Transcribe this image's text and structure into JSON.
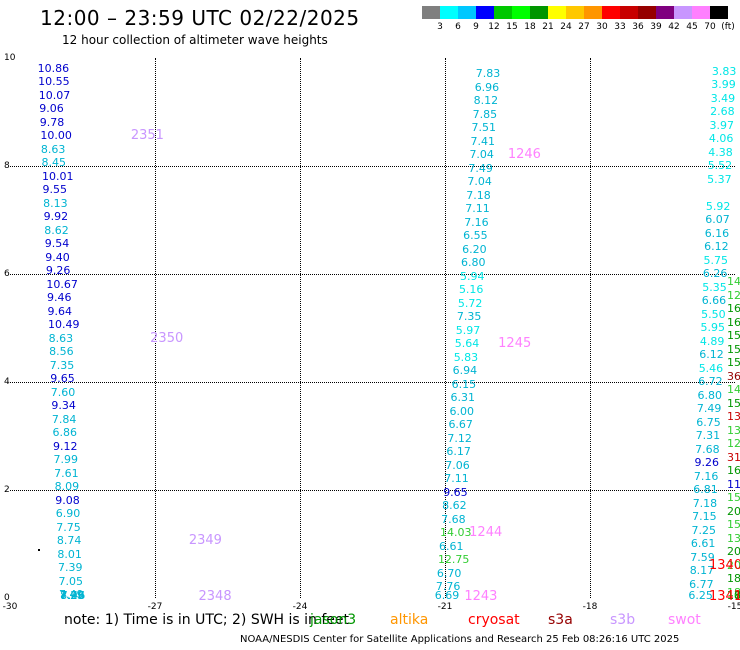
{
  "title": "12:00 – 23:59 UTC 02/22/2025",
  "subtitle": "12 hour collection of altimeter wave heights",
  "colorbar": {
    "colors": [
      "#7f7f7f",
      "#00ffff",
      "#00c8ff",
      "#0000ff",
      "#00c800",
      "#00ff00",
      "#009600",
      "#ffff00",
      "#ffc800",
      "#ff9600",
      "#ff0000",
      "#c80000",
      "#960000",
      "#7f007f",
      "#c896ff",
      "#ff80ff",
      "#000000"
    ],
    "labels": [
      "3",
      "6",
      "9",
      "12",
      "15",
      "18",
      "21",
      "24",
      "27",
      "30",
      "33",
      "36",
      "39",
      "42",
      "45",
      "70",
      "(ft)"
    ]
  },
  "axes": {
    "y_ticks": [
      "10",
      "8",
      "6",
      "4",
      "2",
      "0"
    ],
    "x_ticks": [
      "-30",
      "-27",
      "-24",
      "-21",
      "-18",
      "-15"
    ]
  },
  "chart_data": {
    "type": "scatter",
    "xlim": [
      -30,
      -15
    ],
    "ylim": [
      0,
      10
    ],
    "grid": true,
    "x_unit": "longitude",
    "y_unit": "latitude",
    "tracks": [
      {
        "lon": -28.9,
        "color": "#00008b",
        "points": [
          [
            "10.86",
            9.8,
            "#0000cd"
          ],
          [
            "10.55",
            9.55,
            "#0000cd"
          ],
          [
            "10.07",
            9.3,
            "#0000cd"
          ],
          [
            "9.06",
            9.05,
            "#0000cd"
          ],
          [
            "9.78",
            8.8,
            "#0000cd"
          ],
          [
            "10.00",
            8.55,
            "#0000cd"
          ],
          [
            "8.63",
            8.3,
            "#00b4d2"
          ],
          [
            "8.45",
            8.05,
            "#00b4d2"
          ],
          [
            "10.01",
            7.8,
            "#0000cd"
          ],
          [
            "9.55",
            7.55,
            "#0000cd"
          ],
          [
            "8.13",
            7.3,
            "#00b4d2"
          ],
          [
            "9.92",
            7.05,
            "#0000cd"
          ],
          [
            "8.62",
            6.8,
            "#00b4d2"
          ],
          [
            "9.54",
            6.55,
            "#0000cd"
          ],
          [
            "9.40",
            6.3,
            "#0000cd"
          ],
          [
            "9.26",
            6.05,
            "#0000cd"
          ],
          [
            "10.67",
            5.8,
            "#0000cd"
          ],
          [
            "9.46",
            5.55,
            "#0000cd"
          ],
          [
            "9.64",
            5.3,
            "#0000cd"
          ],
          [
            "10.49",
            5.05,
            "#0000cd"
          ],
          [
            "8.63",
            4.8,
            "#00b4d2"
          ],
          [
            "8.56",
            4.55,
            "#00b4d2"
          ],
          [
            "7.35",
            4.3,
            "#00b4d2"
          ],
          [
            "9.65",
            4.05,
            "#0000cd"
          ],
          [
            "7.60",
            3.8,
            "#00b4d2"
          ],
          [
            "9.34",
            3.55,
            "#0000cd"
          ],
          [
            "7.84",
            3.3,
            "#00b4d2"
          ],
          [
            "6.86",
            3.05,
            "#00b4d2"
          ],
          [
            "9.12",
            2.8,
            "#0000cd"
          ],
          [
            "7.99",
            2.55,
            "#00b4d2"
          ],
          [
            "7.61",
            2.3,
            "#00b4d2"
          ],
          [
            "8.09",
            2.05,
            "#00b4d2"
          ],
          [
            "9.08",
            1.8,
            "#0000cd"
          ],
          [
            "6.90",
            1.55,
            "#00b4d2"
          ],
          [
            "7.75",
            1.3,
            "#00b4d2"
          ],
          [
            "8.74",
            1.05,
            "#00b4d2"
          ],
          [
            "8.01",
            0.8,
            "#00b4d2"
          ],
          [
            "7.39",
            0.55,
            "#00b4d2"
          ],
          [
            "7.05",
            0.3,
            "#00b4d2"
          ],
          [
            "7.49",
            0.05,
            "#00b4d2"
          ],
          [
            "7.29",
            -0.2,
            "#00b4d2"
          ],
          [
            "8.08",
            -0.45,
            "#00b4d2"
          ],
          [
            "7.46",
            -0.7,
            "#00b4d2"
          ]
        ]
      },
      {
        "lon": -21.0,
        "points": [
          [
            "7.83",
            9.7,
            "#00b4d2"
          ],
          [
            "6.96",
            9.45,
            "#00b4d2"
          ],
          [
            "8.12",
            9.2,
            "#00b4d2"
          ],
          [
            "7.85",
            8.95,
            "#00b4d2"
          ],
          [
            "7.51",
            8.7,
            "#00b4d2"
          ],
          [
            "7.41",
            8.45,
            "#00b4d2"
          ],
          [
            "7.04",
            8.2,
            "#00b4d2"
          ],
          [
            "7.49",
            7.95,
            "#00b4d2"
          ],
          [
            "7.04",
            7.7,
            "#00b4d2"
          ],
          [
            "7.18",
            7.45,
            "#00b4d2"
          ],
          [
            "7.11",
            7.2,
            "#00b4d2"
          ],
          [
            "7.16",
            6.95,
            "#00b4d2"
          ],
          [
            "6.55",
            6.7,
            "#00b4d2"
          ],
          [
            "6.20",
            6.45,
            "#00b4d2"
          ],
          [
            "6.80",
            6.2,
            "#00b4d2"
          ],
          [
            "5.94",
            5.95,
            "#00e6e6"
          ],
          [
            "5.16",
            5.7,
            "#00e6e6"
          ],
          [
            "5.72",
            5.45,
            "#00e6e6"
          ],
          [
            "7.35",
            5.2,
            "#00b4d2"
          ],
          [
            "5.97",
            4.95,
            "#00e6e6"
          ],
          [
            "5.64",
            4.7,
            "#00e6e6"
          ],
          [
            "5.83",
            4.45,
            "#00e6e6"
          ],
          [
            "6.94",
            4.2,
            "#00b4d2"
          ],
          [
            "6.15",
            3.95,
            "#00b4d2"
          ],
          [
            "6.31",
            3.7,
            "#00b4d2"
          ],
          [
            "6.00",
            3.45,
            "#00b4d2"
          ],
          [
            "6.67",
            3.2,
            "#00b4d2"
          ],
          [
            "7.12",
            2.95,
            "#00b4d2"
          ],
          [
            "6.17",
            2.7,
            "#00b4d2"
          ],
          [
            "7.06",
            2.45,
            "#00b4d2"
          ],
          [
            "7.11",
            2.2,
            "#00b4d2"
          ],
          [
            "9.65",
            1.95,
            "#0000cd"
          ],
          [
            "8.62",
            1.7,
            "#00b4d2"
          ],
          [
            "7.68",
            1.45,
            "#00b4d2"
          ],
          [
            "14.03",
            1.2,
            "#32cd32"
          ],
          [
            "6.61",
            0.95,
            "#00b4d2"
          ],
          [
            "12.75",
            0.7,
            "#32cd32"
          ],
          [
            "6.70",
            0.45,
            "#00b4d2"
          ],
          [
            "7.76",
            0.2,
            "#00b4d2"
          ],
          [
            "6.69",
            -0.05,
            "#00b4d2"
          ]
        ]
      },
      {
        "lon": -15.3,
        "points": [
          [
            "3.83",
            9.75,
            "#00e6e6"
          ],
          [
            "3.99",
            9.5,
            "#00e6e6"
          ],
          [
            "3.49",
            9.25,
            "#00e6e6"
          ],
          [
            "2.68",
            9.0,
            "#00e6e6"
          ],
          [
            "3.97",
            8.75,
            "#00e6e6"
          ],
          [
            "4.06",
            8.5,
            "#00e6e6"
          ],
          [
            "4.38",
            8.25,
            "#00e6e6"
          ],
          [
            "5.52",
            8.0,
            "#00e6e6"
          ],
          [
            "5.37",
            7.75,
            "#00e6e6"
          ],
          [
            "5.92",
            7.25,
            "#00e6e6"
          ],
          [
            "6.07",
            7.0,
            "#00b4d2"
          ],
          [
            "6.16",
            6.75,
            "#00b4d2"
          ],
          [
            "6.12",
            6.5,
            "#00b4d2"
          ],
          [
            "5.75",
            6.25,
            "#00e6e6"
          ],
          [
            "6.26",
            6.0,
            "#00b4d2"
          ],
          [
            "5.35",
            5.75,
            "#00e6e6"
          ],
          [
            "6.66",
            5.5,
            "#00b4d2"
          ],
          [
            "5.50",
            5.25,
            "#00e6e6"
          ],
          [
            "5.95",
            5.0,
            "#00e6e6"
          ],
          [
            "4.89",
            4.75,
            "#00e6e6"
          ],
          [
            "6.12",
            4.5,
            "#00b4d2"
          ],
          [
            "5.46",
            4.25,
            "#00e6e6"
          ],
          [
            "6.72",
            4.0,
            "#00b4d2"
          ],
          [
            "6.80",
            3.75,
            "#00b4d2"
          ],
          [
            "7.49",
            3.5,
            "#00b4d2"
          ],
          [
            "6.75",
            3.25,
            "#00b4d2"
          ],
          [
            "7.31",
            3.0,
            "#00b4d2"
          ],
          [
            "7.68",
            2.75,
            "#00b4d2"
          ],
          [
            "9.26",
            2.5,
            "#0000cd"
          ],
          [
            "7.16",
            2.25,
            "#00b4d2"
          ],
          [
            "6.81",
            2.0,
            "#00b4d2"
          ],
          [
            "7.18",
            1.75,
            "#00b4d2"
          ],
          [
            "7.15",
            1.5,
            "#00b4d2"
          ],
          [
            "7.25",
            1.25,
            "#00b4d2"
          ],
          [
            "6.61",
            1.0,
            "#00b4d2"
          ],
          [
            "7.59",
            0.75,
            "#00b4d2"
          ],
          [
            "8.17",
            0.5,
            "#00b4d2"
          ],
          [
            "6.77",
            0.25,
            "#00b4d2"
          ],
          [
            "6.25",
            -0.05,
            "#00b4d2"
          ]
        ]
      },
      {
        "lon": -14.9,
        "points": [
          [
            "14",
            5.85,
            "#32cd32"
          ],
          [
            "12",
            5.6,
            "#32cd32"
          ],
          [
            "16",
            5.35,
            "#009600"
          ],
          [
            "16.",
            5.1,
            "#009600"
          ],
          [
            "15.1",
            4.85,
            "#009600"
          ],
          [
            "15.0",
            4.6,
            "#009600"
          ],
          [
            "15.1",
            4.35,
            "#009600"
          ],
          [
            "36.17",
            4.1,
            "#960000"
          ],
          [
            "14.41",
            3.85,
            "#32cd32"
          ],
          [
            "15.1",
            3.6,
            "#009600"
          ],
          [
            "13",
            3.35,
            "#c80000"
          ],
          [
            "13.00",
            3.1,
            "#32cd32"
          ],
          [
            "12.79",
            2.85,
            "#32cd32"
          ],
          [
            "31.78",
            2.6,
            "#c80000"
          ],
          [
            "16.94",
            2.35,
            "#009600"
          ],
          [
            "11.95",
            2.1,
            "#0000cd"
          ],
          [
            "15.30",
            1.85,
            "#32cd32"
          ],
          [
            "20.63",
            1.6,
            "#009600"
          ],
          [
            "15.06",
            1.35,
            "#32cd32"
          ],
          [
            "13.89",
            1.1,
            "#32cd32"
          ],
          [
            "20.02",
            0.85,
            "#009600"
          ],
          [
            "20.37",
            0.6,
            "#32cd32"
          ],
          [
            "18.85",
            0.35,
            "#009600"
          ],
          [
            "18.71",
            0.1,
            "#32cd32"
          ],
          [
            "17.44",
            -0.15,
            "#009600"
          ],
          [
            "16.23",
            -0.4,
            "#009600"
          ],
          [
            "16.23",
            -0.65,
            "#32cd32"
          ],
          [
            "18.95",
            -0.9,
            "#009600"
          ]
        ]
      }
    ],
    "revolutions": [
      {
        "label": "2351",
        "lon": -27.5,
        "lat": 8.55
      },
      {
        "label": "2350",
        "lon": -27.1,
        "lat": 4.8
      },
      {
        "label": "2349",
        "lon": -26.3,
        "lat": 1.05
      },
      {
        "label": "2348",
        "lon": -26.1,
        "lat": -0.7
      },
      {
        "label": "1246",
        "lon": -19.7,
        "lat": 8.2
      },
      {
        "label": "1245",
        "lon": -19.9,
        "lat": 4.7
      },
      {
        "label": "1244",
        "lon": -20.5,
        "lat": 1.2
      },
      {
        "label": "1243",
        "lon": -20.6,
        "lat": -0.05
      },
      {
        "label": "1340",
        "lon": -14.9,
        "lat": 0.6
      },
      {
        "label": "1341",
        "lon": -15.1,
        "lat": -0.05
      }
    ]
  },
  "note": "note:  1) Time is in UTC; 2) SWH is in feet",
  "satellites": [
    {
      "name": "jason3",
      "color": "#009600"
    },
    {
      "name": "altika",
      "color": "#ff9600"
    },
    {
      "name": "cryosat",
      "color": "#ff0000"
    },
    {
      "name": "s3a",
      "color": "#960000"
    },
    {
      "name": "s3b",
      "color": "#c896ff"
    },
    {
      "name": "swot",
      "color": "#ff80ff"
    }
  ],
  "credit": "NOAA/NESDIS Center for Satellite Applications and Research   25 Feb 08:26:16 UTC 2025"
}
